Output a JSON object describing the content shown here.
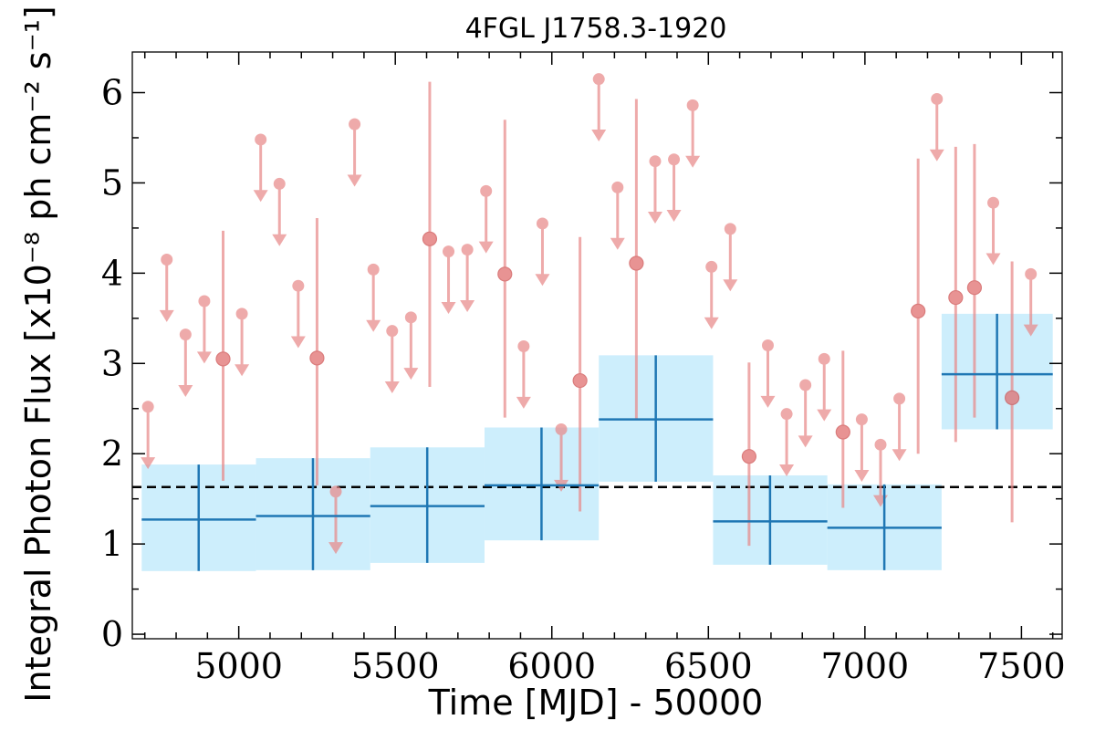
{
  "chart_data": {
    "type": "scatter",
    "title": "4FGL J1758.3-1920",
    "xlabel": "Time [MJD] - 50000",
    "ylabel": "Integral Photon Flux [x10⁻⁸ ph cm⁻² s⁻¹]",
    "xlim": [
      4660,
      7630
    ],
    "ylim": [
      -0.05,
      6.45
    ],
    "x_ticks": [
      5000,
      5500,
      6000,
      6500,
      7000,
      7500
    ],
    "y_ticks": [
      0,
      1,
      2,
      3,
      4,
      5,
      6
    ],
    "reference_flux": 1.63,
    "colors": {
      "monthly": "#e88a8a",
      "yearly_box": "#cdeefc",
      "yearly_line": "#1f77b4",
      "reference": "#000000"
    },
    "monthly_upper_limits": [
      {
        "x": 4710,
        "y": 2.52
      },
      {
        "x": 4770,
        "y": 4.15
      },
      {
        "x": 4830,
        "y": 3.32
      },
      {
        "x": 4890,
        "y": 3.69
      },
      {
        "x": 5010,
        "y": 3.55
      },
      {
        "x": 5070,
        "y": 5.48
      },
      {
        "x": 5130,
        "y": 4.99
      },
      {
        "x": 5190,
        "y": 3.86
      },
      {
        "x": 5310,
        "y": 1.58
      },
      {
        "x": 5370,
        "y": 5.65
      },
      {
        "x": 5430,
        "y": 4.04
      },
      {
        "x": 5490,
        "y": 3.36
      },
      {
        "x": 5550,
        "y": 3.51
      },
      {
        "x": 5670,
        "y": 4.24
      },
      {
        "x": 5730,
        "y": 4.26
      },
      {
        "x": 5790,
        "y": 4.91
      },
      {
        "x": 5910,
        "y": 3.19
      },
      {
        "x": 5970,
        "y": 4.55
      },
      {
        "x": 6030,
        "y": 2.27
      },
      {
        "x": 6150,
        "y": 6.15
      },
      {
        "x": 6210,
        "y": 4.95
      },
      {
        "x": 6330,
        "y": 5.24
      },
      {
        "x": 6390,
        "y": 5.26
      },
      {
        "x": 6450,
        "y": 5.86
      },
      {
        "x": 6510,
        "y": 4.07
      },
      {
        "x": 6570,
        "y": 4.49
      },
      {
        "x": 6690,
        "y": 3.2
      },
      {
        "x": 6750,
        "y": 2.44
      },
      {
        "x": 6810,
        "y": 2.76
      },
      {
        "x": 6870,
        "y": 3.05
      },
      {
        "x": 6990,
        "y": 2.38
      },
      {
        "x": 7050,
        "y": 2.1
      },
      {
        "x": 7110,
        "y": 2.61
      },
      {
        "x": 7230,
        "y": 5.93
      },
      {
        "x": 7410,
        "y": 4.78
      },
      {
        "x": 7530,
        "y": 3.99
      }
    ],
    "monthly_detections": [
      {
        "x": 4950,
        "y": 3.05,
        "y_low": 1.7,
        "y_high": 4.47
      },
      {
        "x": 5250,
        "y": 3.06,
        "y_low": 1.65,
        "y_high": 4.61
      },
      {
        "x": 5610,
        "y": 4.38,
        "y_low": 2.74,
        "y_high": 6.12
      },
      {
        "x": 5850,
        "y": 3.99,
        "y_low": 2.4,
        "y_high": 5.7
      },
      {
        "x": 6090,
        "y": 2.81,
        "y_low": 1.36,
        "y_high": 4.4
      },
      {
        "x": 6270,
        "y": 4.11,
        "y_low": 2.39,
        "y_high": 5.93
      },
      {
        "x": 6630,
        "y": 1.97,
        "y_low": 0.98,
        "y_high": 3.01
      },
      {
        "x": 6930,
        "y": 2.24,
        "y_low": 1.4,
        "y_high": 3.14
      },
      {
        "x": 7170,
        "y": 3.58,
        "y_low": 2.0,
        "y_high": 5.27
      },
      {
        "x": 7290,
        "y": 3.73,
        "y_low": 2.13,
        "y_high": 5.4
      },
      {
        "x": 7350,
        "y": 3.84,
        "y_low": 2.4,
        "y_high": 5.43
      },
      {
        "x": 7470,
        "y": 2.62,
        "y_low": 1.24,
        "y_high": 4.13
      }
    ],
    "yearly_bins": [
      {
        "x_min": 4690,
        "x_max": 5055,
        "x_center": 4872,
        "y": 1.27,
        "y_low": 0.7,
        "y_high": 1.88
      },
      {
        "x_min": 5055,
        "x_max": 5420,
        "x_center": 5237,
        "y": 1.31,
        "y_low": 0.71,
        "y_high": 1.95
      },
      {
        "x_min": 5420,
        "x_max": 5785,
        "x_center": 5602,
        "y": 1.42,
        "y_low": 0.79,
        "y_high": 2.07
      },
      {
        "x_min": 5785,
        "x_max": 6150,
        "x_center": 5967,
        "y": 1.65,
        "y_low": 1.04,
        "y_high": 2.29
      },
      {
        "x_min": 6150,
        "x_max": 6515,
        "x_center": 6332,
        "y": 2.38,
        "y_low": 1.69,
        "y_high": 3.09
      },
      {
        "x_min": 6515,
        "x_max": 6880,
        "x_center": 6697,
        "y": 1.25,
        "y_low": 0.77,
        "y_high": 1.76
      },
      {
        "x_min": 6880,
        "x_max": 7245,
        "x_center": 7062,
        "y": 1.18,
        "y_low": 0.71,
        "y_high": 1.66
      },
      {
        "x_min": 7245,
        "x_max": 7600,
        "x_center": 7422,
        "y": 2.88,
        "y_low": 2.27,
        "y_high": 3.55
      }
    ]
  }
}
